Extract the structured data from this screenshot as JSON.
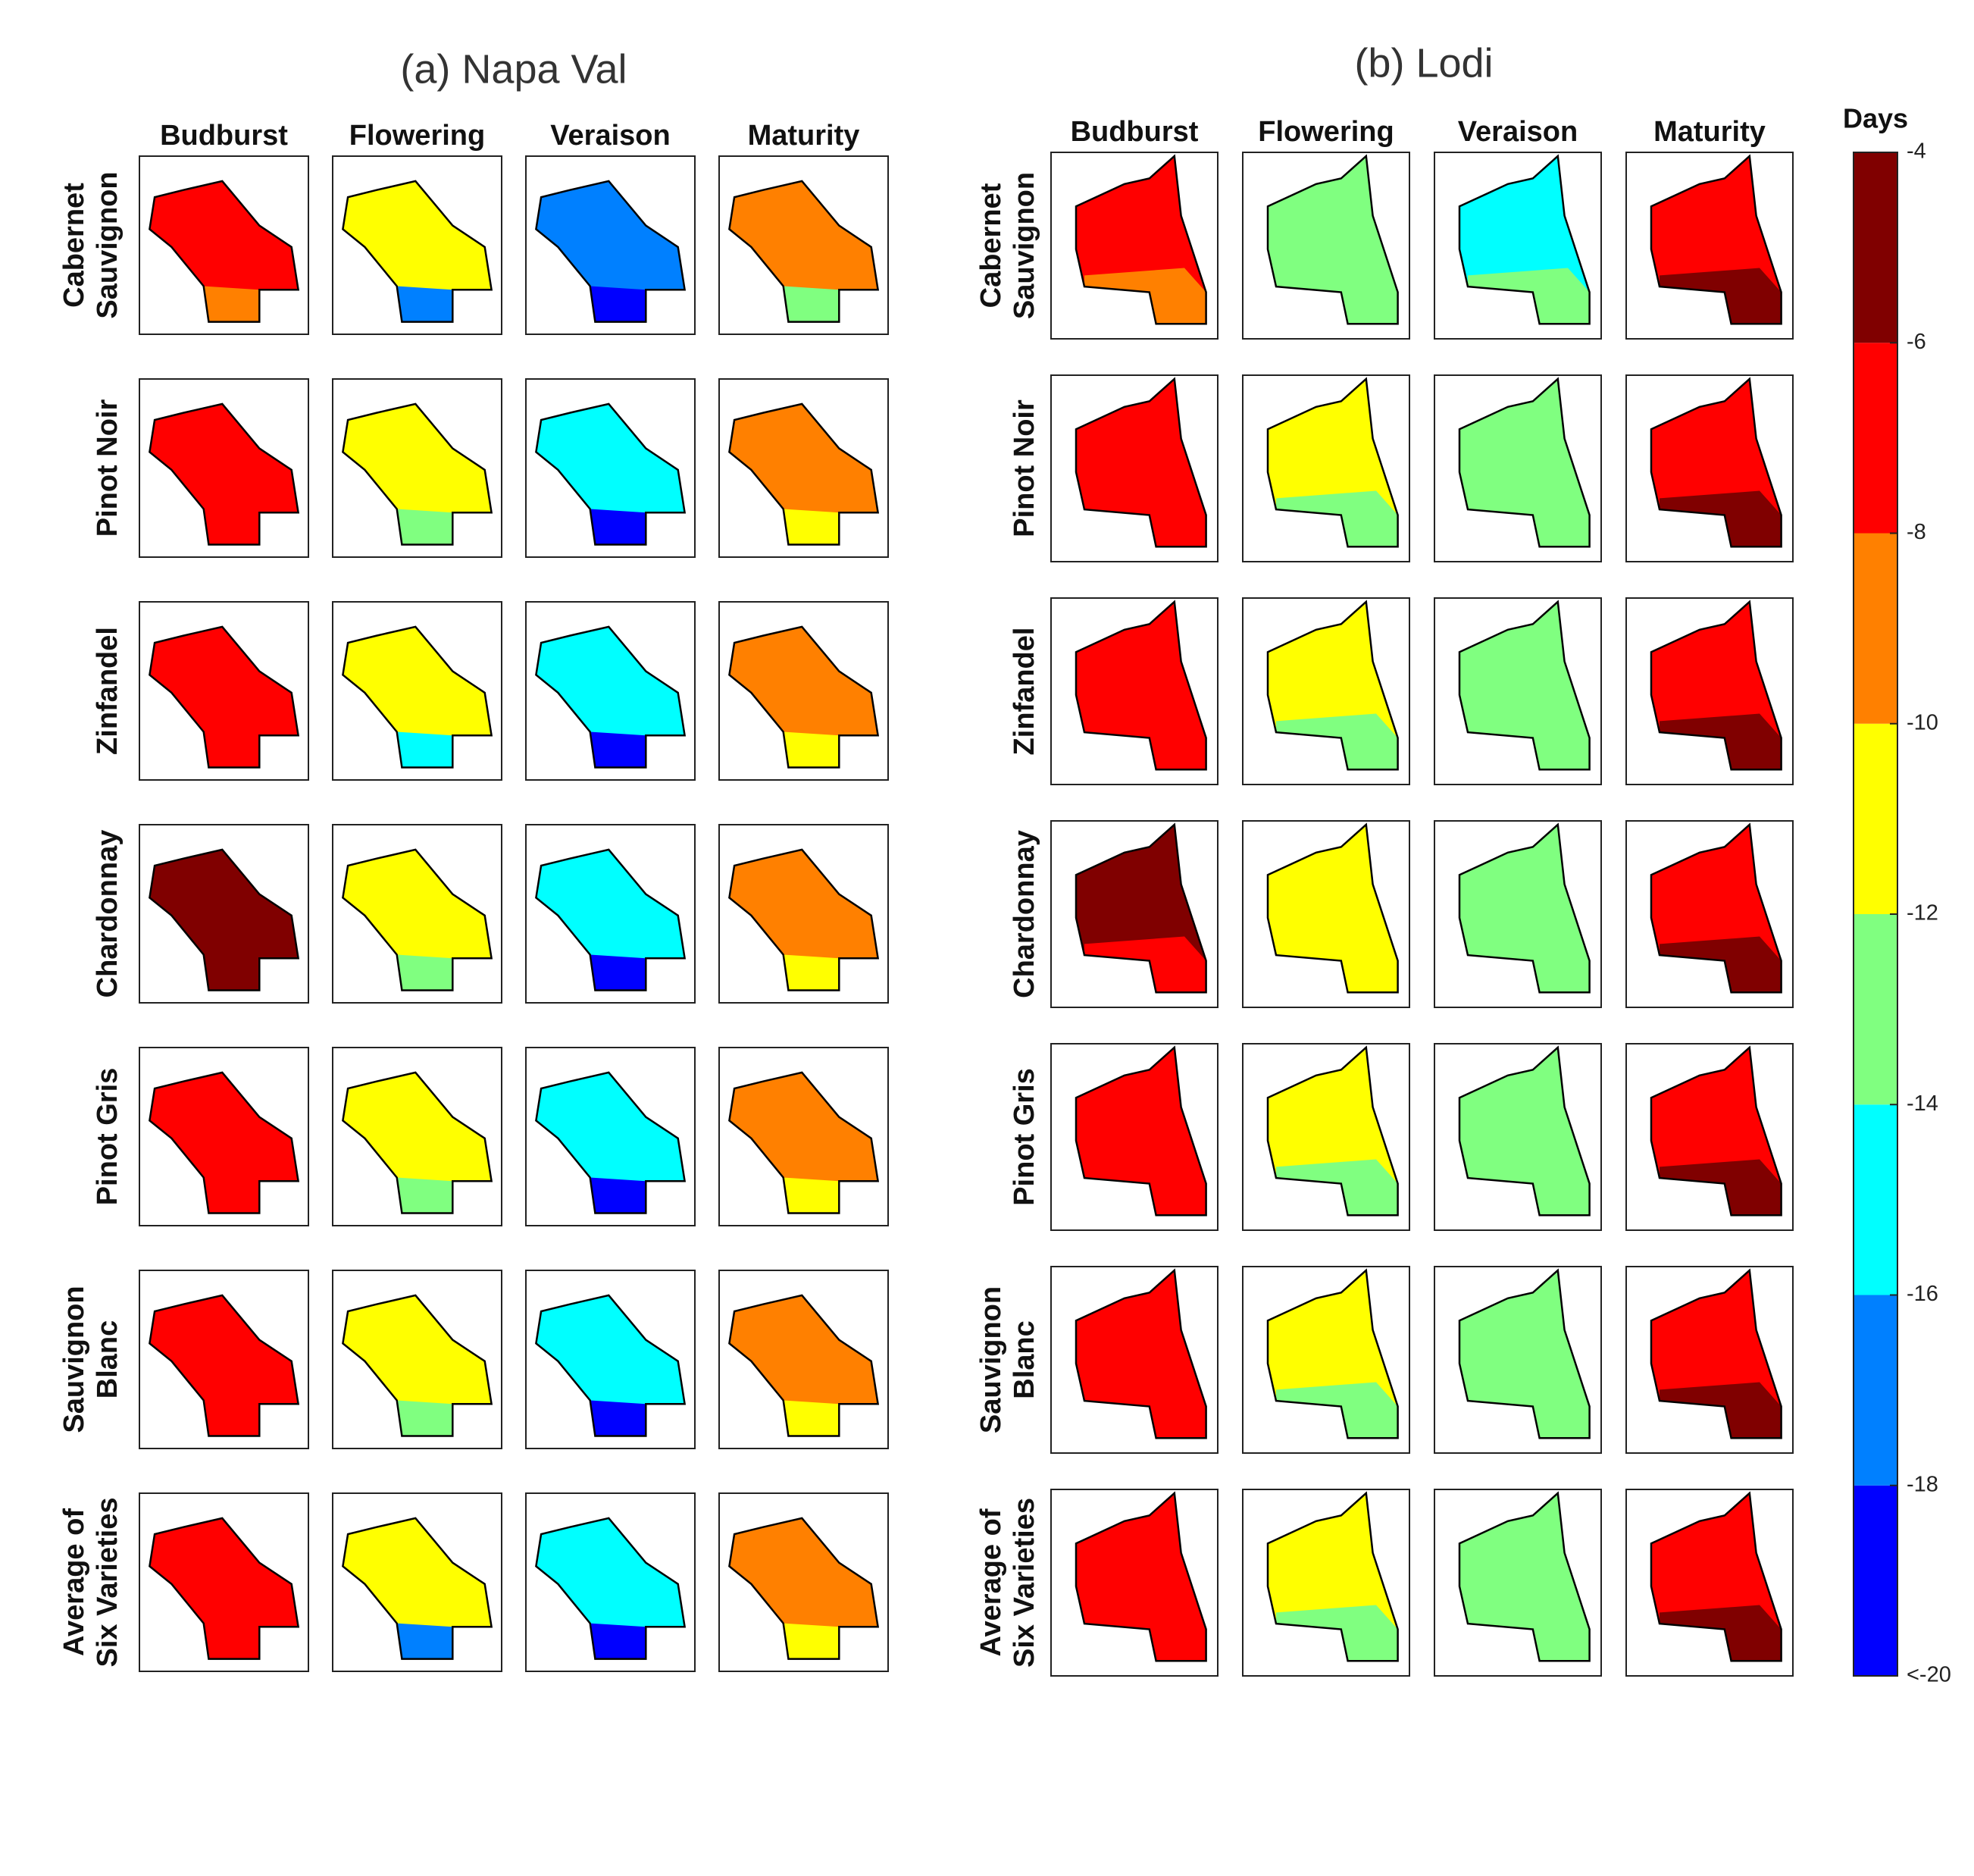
{
  "chart_data": {
    "type": "heatmap",
    "panels": [
      {
        "title": "(a) Napa Val",
        "columns": [
          "Budburst",
          "Flowering",
          "Veraison",
          "Maturity"
        ],
        "rows": [
          [
            "Cabernet",
            "Sauvignon"
          ],
          [
            "Pinot Noir"
          ],
          [
            "Zinfandel"
          ],
          [
            "Chardonnay"
          ],
          [
            "Pinot Gris"
          ],
          [
            "Sauvignon",
            "Blanc"
          ],
          [
            "Average of",
            "Six Varieties"
          ]
        ],
        "maps": [
          [
            {
              "main": -7,
              "south": -9
            },
            {
              "main": -11,
              "south": -17
            },
            {
              "main": -17,
              "south": -19
            },
            {
              "main": -9,
              "south": -13
            }
          ],
          [
            {
              "main": -7,
              "south": -7
            },
            {
              "main": -11,
              "south": -13
            },
            {
              "main": -15,
              "south": -19
            },
            {
              "main": -9,
              "south": -11
            }
          ],
          [
            {
              "main": -7,
              "south": -7
            },
            {
              "main": -11,
              "south": -15
            },
            {
              "main": -15,
              "south": -19
            },
            {
              "main": -9,
              "south": -11
            }
          ],
          [
            {
              "main": -5,
              "south": -5
            },
            {
              "main": -11,
              "south": -13
            },
            {
              "main": -15,
              "south": -19
            },
            {
              "main": -9,
              "south": -11
            }
          ],
          [
            {
              "main": -7,
              "south": -7
            },
            {
              "main": -11,
              "south": -13
            },
            {
              "main": -15,
              "south": -19
            },
            {
              "main": -9,
              "south": -11
            }
          ],
          [
            {
              "main": -7,
              "south": -7
            },
            {
              "main": -11,
              "south": -13
            },
            {
              "main": -15,
              "south": -19
            },
            {
              "main": -9,
              "south": -11
            }
          ],
          [
            {
              "main": -7,
              "south": -7
            },
            {
              "main": -11,
              "south": -17
            },
            {
              "main": -15,
              "south": -19
            },
            {
              "main": -9,
              "south": -11
            }
          ]
        ]
      },
      {
        "title": "(b) Lodi",
        "columns": [
          "Budburst",
          "Flowering",
          "Veraison",
          "Maturity"
        ],
        "rows": [
          [
            "Cabernet",
            "Sauvignon"
          ],
          [
            "Pinot Noir"
          ],
          [
            "Zinfandel"
          ],
          [
            "Chardonnay"
          ],
          [
            "Pinot Gris"
          ],
          [
            "Sauvignon",
            "Blanc"
          ],
          [
            "Average of",
            "Six Varieties"
          ]
        ],
        "maps": [
          [
            {
              "main": -7,
              "south": -9
            },
            {
              "main": -13,
              "south": -13
            },
            {
              "main": -15,
              "south": -13
            },
            {
              "main": -7,
              "south": -5
            }
          ],
          [
            {
              "main": -7,
              "south": -7
            },
            {
              "main": -11,
              "south": -13
            },
            {
              "main": -13,
              "south": -13
            },
            {
              "main": -7,
              "south": -5
            }
          ],
          [
            {
              "main": -7,
              "south": -7
            },
            {
              "main": -11,
              "south": -13
            },
            {
              "main": -13,
              "south": -13
            },
            {
              "main": -7,
              "south": -5
            }
          ],
          [
            {
              "main": -5,
              "south": -7
            },
            {
              "main": -11,
              "south": -11
            },
            {
              "main": -13,
              "south": -13
            },
            {
              "main": -7,
              "south": -5
            }
          ],
          [
            {
              "main": -7,
              "south": -7
            },
            {
              "main": -11,
              "south": -13
            },
            {
              "main": -13,
              "south": -13
            },
            {
              "main": -7,
              "south": -5
            }
          ],
          [
            {
              "main": -7,
              "south": -7
            },
            {
              "main": -11,
              "south": -13
            },
            {
              "main": -13,
              "south": -13
            },
            {
              "main": -7,
              "south": -5
            }
          ],
          [
            {
              "main": -7,
              "south": -7
            },
            {
              "main": -11,
              "south": -13
            },
            {
              "main": -13,
              "south": -13
            },
            {
              "main": -7,
              "south": -5
            }
          ]
        ]
      }
    ],
    "colorbar": {
      "label": "Days",
      "ylim": [
        -20,
        -4
      ],
      "yticks": [
        {
          "value": -20,
          "label": "<-20"
        },
        -18,
        -16,
        -14,
        -12,
        -10,
        -8,
        -6,
        -4
      ],
      "colors": [
        "#0000ff",
        "#0080ff",
        "#00ffff",
        "#80ff80",
        "#ffff00",
        "#ff8000",
        "#ff0000",
        "#800000"
      ]
    }
  }
}
